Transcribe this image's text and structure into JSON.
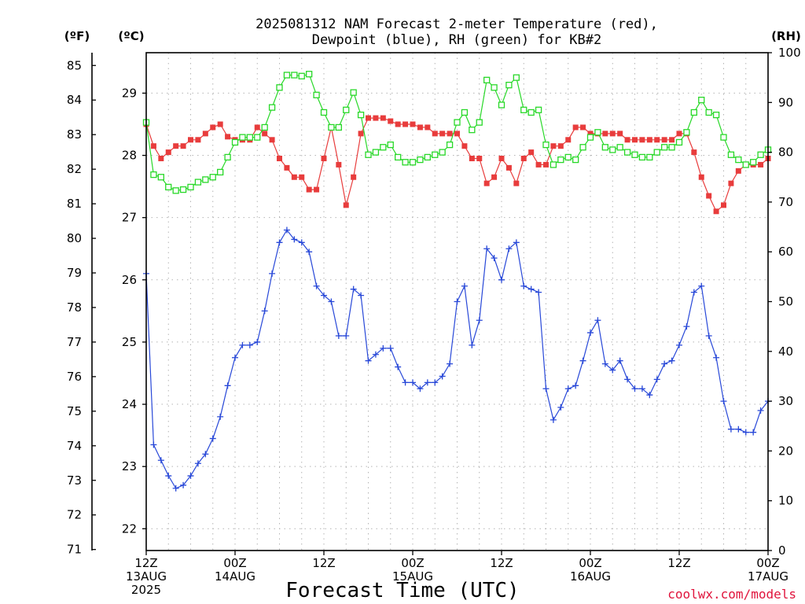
{
  "chart_data": {
    "type": "line",
    "title_lines": [
      "2025081312 NAM Forecast 2-meter Temperature (red),",
      "Dewpoint (blue), RH (green) for KB#2"
    ],
    "xlabel": "Forecast Time (UTC)",
    "credit": "coolwx.com/models",
    "units": {
      "fahrenheit": "(ºF)",
      "celsius": "(ºC)",
      "rh": "(RH)"
    },
    "x_range_hours": [
      0,
      84
    ],
    "x_ticks": [
      {
        "h": 0,
        "lines": [
          "12Z",
          "13AUG",
          "2025"
        ]
      },
      {
        "h": 12,
        "lines": [
          "00Z",
          "14AUG"
        ]
      },
      {
        "h": 24,
        "lines": [
          "12Z"
        ]
      },
      {
        "h": 36,
        "lines": [
          "00Z",
          "15AUG"
        ]
      },
      {
        "h": 48,
        "lines": [
          "12Z"
        ]
      },
      {
        "h": 60,
        "lines": [
          "00Z",
          "16AUG"
        ]
      },
      {
        "h": 72,
        "lines": [
          "12Z"
        ]
      },
      {
        "h": 84,
        "lines": [
          "00Z",
          "17AUG"
        ]
      }
    ],
    "celsius_axis": {
      "range": [
        21.65,
        29.65
      ],
      "ticks": [
        "22",
        "23",
        "24",
        "25",
        "26",
        "27",
        "28",
        "29"
      ]
    },
    "fahrenheit_axis": {
      "ticks": [
        "71",
        "72",
        "73",
        "74",
        "75",
        "76",
        "77",
        "78",
        "79",
        "80",
        "81",
        "82",
        "83",
        "84",
        "85"
      ]
    },
    "rh_axis": {
      "range": [
        0,
        100
      ],
      "ticks": [
        "0",
        "10",
        "20",
        "30",
        "40",
        "50",
        "60",
        "70",
        "80",
        "90",
        "100"
      ]
    },
    "grid": true,
    "series": [
      {
        "key": "temperature",
        "unit": "C",
        "color": "#e83c3c",
        "marker": "filled-square",
        "values": [
          28.5,
          28.15,
          27.95,
          28.05,
          28.15,
          28.15,
          28.25,
          28.25,
          28.35,
          28.45,
          28.5,
          28.3,
          28.25,
          28.25,
          28.25,
          28.45,
          28.35,
          28.25,
          27.95,
          27.8,
          27.65,
          27.65,
          27.45,
          27.45,
          27.95,
          28.45,
          27.85,
          27.2,
          27.65,
          28.35,
          28.6,
          28.6,
          28.6,
          28.55,
          28.5,
          28.5,
          28.5,
          28.45,
          28.45,
          28.35,
          28.35,
          28.35,
          28.35,
          28.15,
          27.95,
          27.95,
          27.55,
          27.65,
          27.95,
          27.8,
          27.55,
          27.95,
          28.05,
          27.85,
          27.85,
          28.15,
          28.15,
          28.25,
          28.45,
          28.45,
          28.35,
          28.35,
          28.35,
          28.35,
          28.35,
          28.25,
          28.25,
          28.25,
          28.25,
          28.25,
          28.25,
          28.25,
          28.35,
          28.35,
          28.05,
          27.65,
          27.35,
          27.1,
          27.2,
          27.55,
          27.75,
          27.85,
          27.85,
          27.85,
          27.95
        ]
      },
      {
        "key": "dewpoint",
        "unit": "C",
        "color": "#2848d8",
        "marker": "plus",
        "values": [
          26.1,
          23.35,
          23.1,
          22.85,
          22.65,
          22.7,
          22.85,
          23.05,
          23.2,
          23.45,
          23.8,
          24.3,
          24.75,
          24.95,
          24.95,
          25,
          25.5,
          26.1,
          26.6,
          26.8,
          26.65,
          26.6,
          26.45,
          25.9,
          25.75,
          25.65,
          25.1,
          25.1,
          25.85,
          25.75,
          24.7,
          24.8,
          24.9,
          24.9,
          24.6,
          24.35,
          24.35,
          24.25,
          24.35,
          24.35,
          24.45,
          24.65,
          25.65,
          25.9,
          24.95,
          25.35,
          26.5,
          26.35,
          26,
          26.5,
          26.6,
          25.9,
          25.85,
          25.8,
          24.25,
          23.75,
          23.95,
          24.25,
          24.3,
          24.7,
          25.15,
          25.35,
          24.65,
          24.55,
          24.7,
          24.4,
          24.25,
          24.25,
          24.15,
          24.4,
          24.65,
          24.7,
          24.95,
          25.25,
          25.8,
          25.9,
          25.1,
          24.75,
          24.05,
          23.6,
          23.6,
          23.55,
          23.55,
          23.9,
          24.05
        ]
      },
      {
        "key": "rh",
        "unit": "%",
        "color": "#28d828",
        "marker": "open-square",
        "values": [
          86,
          75.5,
          75,
          73,
          72.3,
          72.5,
          73,
          74,
          74.5,
          75,
          76,
          79,
          82,
          83,
          83,
          83,
          85,
          89,
          93,
          95.5,
          95.5,
          95.3,
          95.7,
          91.5,
          88,
          85,
          85,
          88.5,
          92,
          87.5,
          79.5,
          80,
          81,
          81.5,
          79,
          78,
          78,
          78.5,
          79,
          79.5,
          80,
          81.5,
          86,
          88,
          84.5,
          86,
          94.5,
          93,
          89.5,
          93.5,
          95,
          88.5,
          88,
          88.5,
          81.5,
          77.5,
          78.5,
          79,
          78.5,
          81,
          83,
          84,
          81,
          80.5,
          81,
          80,
          79.5,
          79,
          79,
          80,
          81,
          81,
          82,
          84,
          88,
          90.5,
          88,
          87.5,
          83,
          79.5,
          78.5,
          77.5,
          78,
          79.5,
          80.5
        ]
      }
    ]
  }
}
